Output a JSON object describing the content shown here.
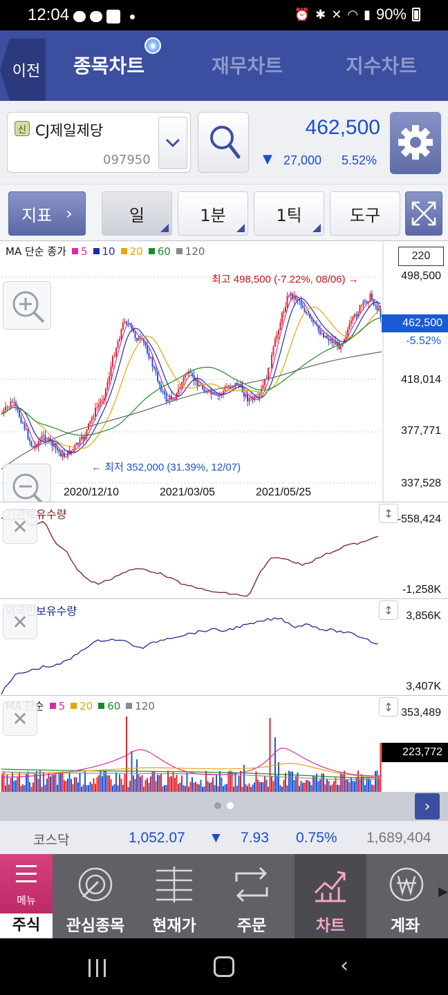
{
  "status": {
    "time": "12:04",
    "battery": "90%"
  },
  "header": {
    "back_label": "이전",
    "tabs": [
      {
        "label": "종목차트",
        "active": true
      },
      {
        "label": "재무차트",
        "active": false
      },
      {
        "label": "지수차트",
        "active": false
      }
    ]
  },
  "stock": {
    "badge": "신",
    "name": "CJ제일제당",
    "code": "097950",
    "price": "462,500",
    "change_arrow": "▼",
    "change": "27,000",
    "change_pct": "5.52%"
  },
  "toolbar": {
    "indicator_label": "지표",
    "period_day": "일",
    "period_min": "1분",
    "period_tick": "1틱",
    "tools": "도구"
  },
  "main_chart": {
    "legend_prefix": "MA 단순 종가",
    "ma_legend": [
      {
        "label": "5",
        "color": "#d62ca8"
      },
      {
        "label": "10",
        "color": "#1c2fa0"
      },
      {
        "label": "20",
        "color": "#e5a50e"
      },
      {
        "label": "60",
        "color": "#1c8a2a"
      },
      {
        "label": "120",
        "color": "#8a8a8a"
      }
    ],
    "period_count": "220",
    "y_ticks": [
      "498,500",
      "418,014",
      "377,771",
      "337,528"
    ],
    "current_price": "462,500",
    "current_pct": "-5.52%",
    "high_note": "최고 498,500 (-7.22%, 08/06) →",
    "low_note": "← 최저 352,000 (31.39%, 12/07)",
    "x_dates": [
      "2020/12/10",
      "2021/03/05",
      "2021/05/25"
    ],
    "colors": {
      "up": "#e0242c",
      "down": "#1f54d6"
    }
  },
  "inst_chart": {
    "title": "기관보유수량",
    "max": "-558,424",
    "min": "-1,258K",
    "color": "#7a1c1c"
  },
  "foreign_chart": {
    "title": "외국인보유수량",
    "max": "3,856K",
    "min": "3,407K",
    "color": "#1c2a8a"
  },
  "volume_chart": {
    "legend_prefix": "MA 단순",
    "ma_legend": [
      {
        "label": "5",
        "color": "#d62ca8"
      },
      {
        "label": "20",
        "color": "#e5a50e"
      },
      {
        "label": "60",
        "color": "#1c8a2a"
      },
      {
        "label": "120",
        "color": "#8a8a8a"
      }
    ],
    "max": "353,489",
    "current": "223,772"
  },
  "ticker": {
    "name": "코스닥",
    "value": "1,052.07",
    "arrow": "▼",
    "change": "7.93",
    "pct": "0.75%",
    "volume": "1,689,404"
  },
  "menu": {
    "home_label": "메뉴",
    "home_footer": "주식",
    "items": [
      {
        "label": "관심종목"
      },
      {
        "label": "현재가"
      },
      {
        "label": "주문"
      },
      {
        "label": "차트",
        "active": true
      },
      {
        "label": "계좌"
      }
    ]
  }
}
